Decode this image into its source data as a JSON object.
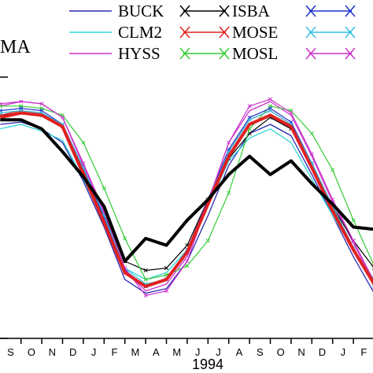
{
  "chart_data": {
    "type": "line",
    "title": "",
    "panel_label": "MA",
    "xlabel": "1994",
    "ylabel": "",
    "x_ticks": [
      "S",
      "O",
      "N",
      "D",
      "J",
      "F",
      "M",
      "A",
      "M",
      "J",
      "J",
      "A",
      "S",
      "O",
      "N",
      "D",
      "J",
      "F"
    ],
    "ylim": [
      0,
      100
    ],
    "grid": false,
    "legend_position": "top",
    "legend": [
      {
        "name": "BUCK",
        "color": "#2b2bb3",
        "marker": "none"
      },
      {
        "name": "CLM2",
        "color": "#33d6d6",
        "marker": "none"
      },
      {
        "name": "HYSS",
        "color": "#cc33cc",
        "marker": "none"
      },
      {
        "name": "ISBA",
        "color": "#000000",
        "marker": "x"
      },
      {
        "name": "MOSE",
        "color": "#e02020",
        "marker": "x"
      },
      {
        "name": "MOSL",
        "color": "#33cc33",
        "marker": "x"
      },
      {
        "name": "",
        "color": "#2030d0",
        "marker": "x"
      },
      {
        "name": "",
        "color": "#33c0e0",
        "marker": "x"
      },
      {
        "name": "",
        "color": "#cc33cc",
        "marker": "x"
      }
    ],
    "series": [
      {
        "name": "BUCK",
        "color": "#2b2bb3",
        "width": 1.3,
        "marker": "none",
        "values": [
          80,
          81,
          78,
          72,
          55,
          35,
          12,
          6,
          8,
          20,
          40,
          62,
          76,
          80,
          75,
          58,
          40,
          22,
          6
        ]
      },
      {
        "name": "CLM2",
        "color": "#33d6d6",
        "width": 1.3,
        "marker": "none",
        "values": [
          78,
          80,
          77,
          73,
          56,
          37,
          17,
          12,
          15,
          25,
          44,
          64,
          74,
          78,
          72,
          56,
          40,
          25,
          12
        ]
      },
      {
        "name": "HYSS",
        "color": "#cc33cc",
        "width": 1.3,
        "marker": "none",
        "values": [
          88,
          90,
          89,
          83,
          62,
          41,
          16,
          7,
          10,
          22,
          46,
          72,
          86,
          90,
          84,
          66,
          46,
          28,
          10
        ]
      },
      {
        "name": "ISBA",
        "color": "#000000",
        "width": 1.2,
        "marker": "x",
        "values": [
          84,
          85,
          84,
          80,
          60,
          40,
          20,
          16,
          17,
          27,
          47,
          65,
          76,
          83,
          78,
          62,
          44,
          29,
          17
        ]
      },
      {
        "name": "MOSE",
        "color": "#e02020",
        "width": 1.2,
        "marker": "x",
        "values": [
          84,
          86,
          85,
          79,
          60,
          39,
          15,
          9,
          12,
          24,
          46,
          68,
          82,
          86,
          80,
          63,
          44,
          26,
          9
        ]
      },
      {
        "name": "MOSL",
        "color": "#33cc33",
        "width": 1.2,
        "marker": "x",
        "values": [
          88,
          88,
          87,
          84,
          72,
          52,
          30,
          12,
          14,
          18,
          29,
          50,
          78,
          88,
          86,
          76,
          60,
          38,
          18
        ]
      },
      {
        "name": "",
        "color": "#2030d0",
        "width": 1.2,
        "marker": "x",
        "values": [
          86,
          87,
          86,
          80,
          61,
          39,
          16,
          9,
          12,
          25,
          47,
          69,
          83,
          87,
          81,
          63,
          44,
          26,
          9
        ]
      },
      {
        "name": "",
        "color": "#33c0e0",
        "width": 1.2,
        "marker": "x",
        "values": [
          85,
          86,
          85,
          80,
          61,
          40,
          17,
          10,
          12,
          24,
          46,
          68,
          82,
          86,
          80,
          63,
          44,
          26,
          9
        ]
      },
      {
        "name": "",
        "color": "#cc33cc",
        "width": 1.2,
        "marker": "x",
        "values": [
          89,
          90,
          89,
          83,
          63,
          42,
          17,
          5,
          7,
          20,
          46,
          72,
          88,
          91,
          85,
          67,
          47,
          29,
          11
        ]
      },
      {
        "name": "",
        "color": "#e02020",
        "width": 4,
        "marker": "none",
        "values": [
          83,
          85,
          84,
          79,
          58,
          37,
          15,
          9,
          12,
          24,
          45,
          66,
          80,
          84,
          79,
          61,
          42,
          25,
          10
        ]
      },
      {
        "name": "",
        "color": "#000000",
        "width": 4,
        "marker": "none",
        "values": [
          82,
          82,
          78,
          68,
          57,
          44,
          20,
          30,
          27,
          38,
          47,
          58,
          66,
          58,
          64,
          54,
          45,
          35,
          34
        ]
      }
    ]
  }
}
